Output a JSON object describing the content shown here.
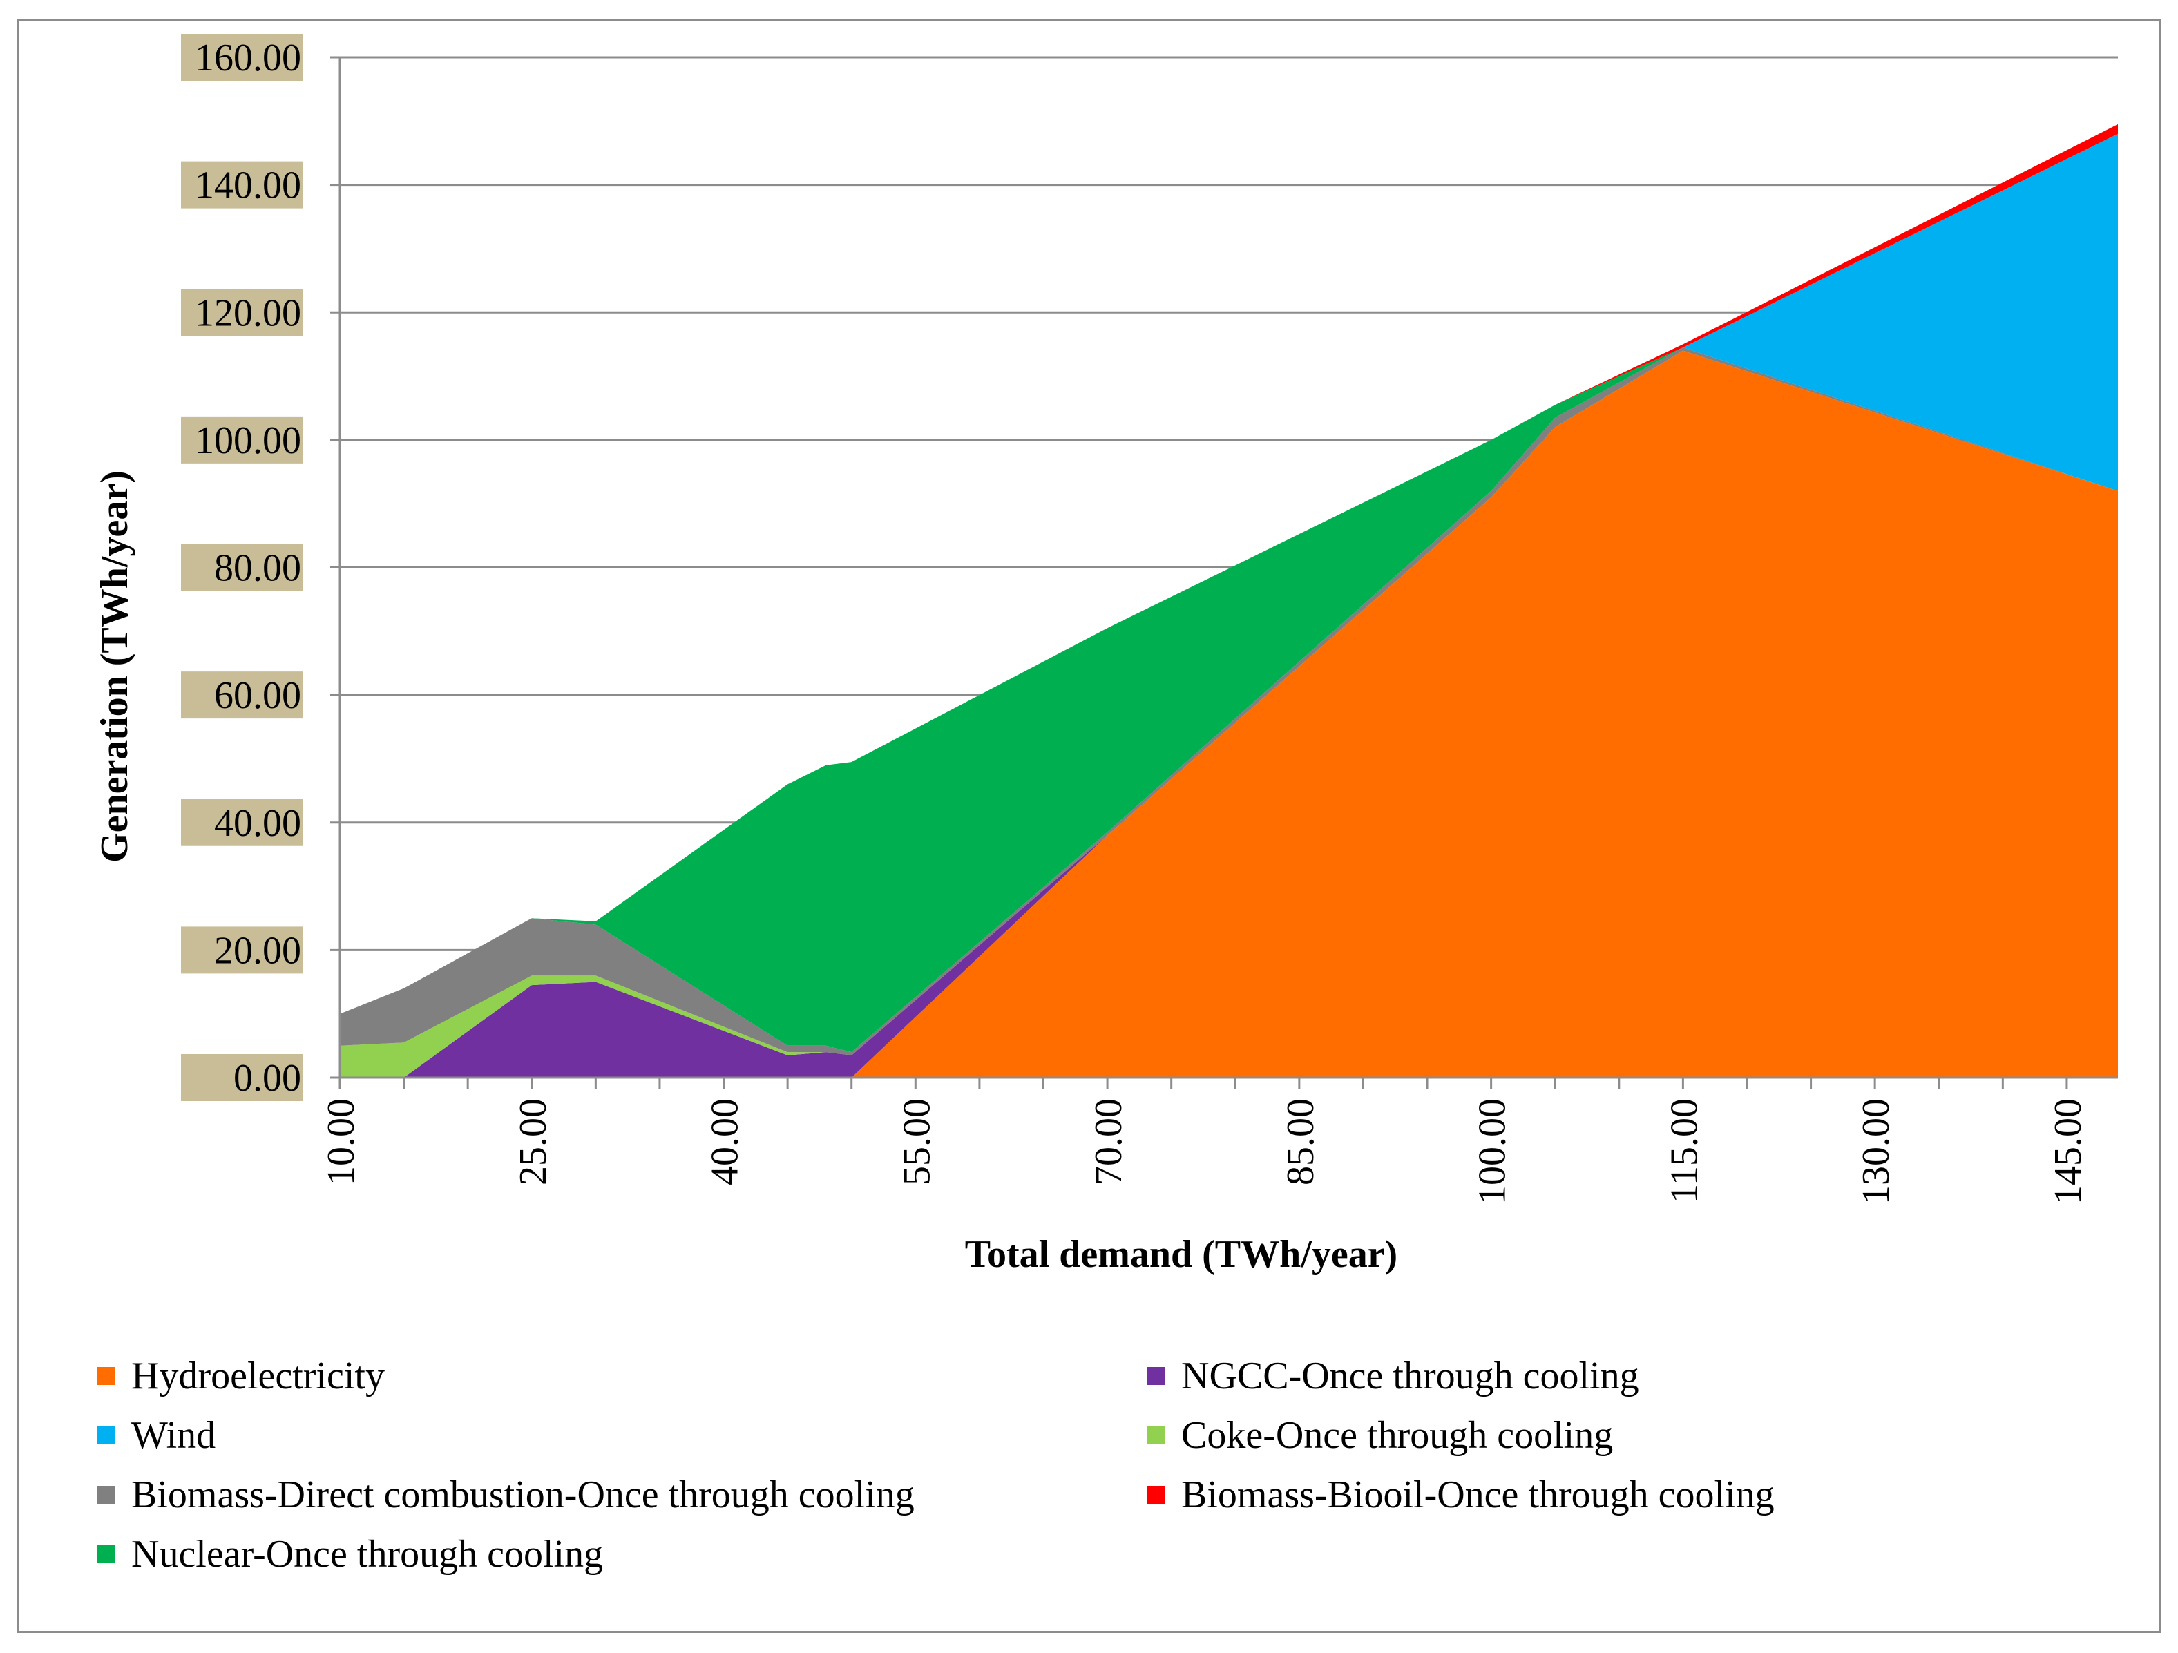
{
  "chart_data": {
    "type": "area",
    "stacked": true,
    "title": "",
    "xlabel": "Total demand (TWh/year)",
    "ylabel": "Generation (TWh/year)",
    "xlim": [
      10,
      149
    ],
    "ylim": [
      0,
      160
    ],
    "x_ticks": [
      "10.00",
      "25.00",
      "40.00",
      "55.00",
      "70.00",
      "85.00",
      "100.00",
      "115.00",
      "130.00",
      "145.00"
    ],
    "y_ticks": [
      "0.00",
      "20.00",
      "40.00",
      "60.00",
      "80.00",
      "100.00",
      "120.00",
      "140.00",
      "160.00"
    ],
    "grid": "horizontal",
    "legend_position": "bottom",
    "x": [
      10,
      15,
      25,
      30,
      45,
      48,
      50,
      70,
      100,
      105,
      115,
      149
    ],
    "series": [
      {
        "name": "Hydroelectricity",
        "color": "#ff6d00",
        "values": [
          0,
          0,
          0,
          0,
          0,
          0,
          0,
          38,
          91,
          102,
          114,
          92
        ]
      },
      {
        "name": "Wind",
        "color": "#00b0f0",
        "values": [
          0,
          0,
          0,
          0,
          0,
          0,
          0,
          0,
          0,
          0,
          0,
          56
        ]
      },
      {
        "name": "Biomass-Direct combustion-Once through cooling",
        "color": "#808080",
        "values": [
          5,
          8.5,
          9,
          8,
          1,
          1,
          0.5,
          0.5,
          1,
          1.5,
          0.5,
          0
        ]
      },
      {
        "name": "Nuclear-Once through cooling",
        "color": "#00b050",
        "values": [
          0,
          0,
          0,
          0.5,
          41,
          44,
          45.5,
          32,
          8,
          2,
          0,
          0
        ]
      },
      {
        "name": "NGCC-Once through cooling",
        "color": "#7030a0",
        "values": [
          0,
          0,
          14.5,
          15,
          3.5,
          4,
          3.5,
          0,
          0,
          0,
          0,
          0
        ]
      },
      {
        "name": "Coke-Once through cooling",
        "color": "#92d050",
        "values": [
          5,
          5.5,
          1.5,
          1,
          0.5,
          0,
          0,
          0,
          0,
          0,
          0,
          0
        ]
      },
      {
        "name": "Biomass-Biooil-Once through cooling",
        "color": "#ff0000",
        "values": [
          0,
          0,
          0,
          0,
          0,
          0,
          0,
          0,
          0,
          0,
          0.5,
          1.5
        ]
      }
    ],
    "stack_order_bottom_to_top": [
      "Hydroelectricity",
      "NGCC-Once through cooling",
      "Coke-Once through cooling",
      "Biomass-Direct combustion-Once through cooling",
      "Nuclear-Once through cooling",
      "Wind",
      "Biomass-Biooil-Once through cooling"
    ]
  }
}
